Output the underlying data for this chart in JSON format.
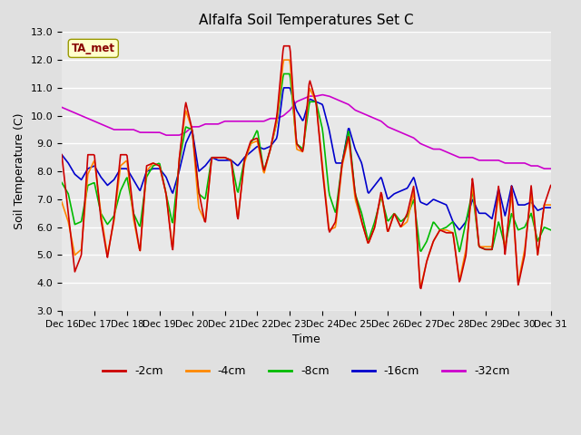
{
  "title": "Alfalfa Soil Temperatures Set C",
  "xlabel": "Time",
  "ylabel": "Soil Temperature (C)",
  "ylim": [
    3.0,
    13.0
  ],
  "yticks": [
    3.0,
    4.0,
    5.0,
    6.0,
    7.0,
    8.0,
    9.0,
    10.0,
    11.0,
    12.0,
    13.0
  ],
  "bg_color": "#e0e0e0",
  "plot_bg_color": "#e8e8e8",
  "annotation_text": "TA_met",
  "series": {
    "-2cm": {
      "color": "#cc0000",
      "lw": 1.2
    },
    "-4cm": {
      "color": "#ff8800",
      "lw": 1.2
    },
    "-8cm": {
      "color": "#00bb00",
      "lw": 1.2
    },
    "-16cm": {
      "color": "#0000cc",
      "lw": 1.2
    },
    "-32cm": {
      "color": "#cc00cc",
      "lw": 1.2
    }
  },
  "xtick_labels": [
    "Dec 16",
    "Dec 17",
    "Dec 18",
    "Dec 19",
    "Dec 20",
    "Dec 21",
    "Dec 22",
    "Dec 23",
    "Dec 24",
    "Dec 25",
    "Dec 26",
    "Dec 27",
    "Dec 28",
    "Dec 29",
    "Dec 30",
    "Dec 31"
  ],
  "legend_colors": [
    "#cc0000",
    "#ff8800",
    "#00bb00",
    "#0000cc",
    "#cc00cc"
  ],
  "legend_labels": [
    "-2cm",
    "-4cm",
    "-8cm",
    "-16cm",
    "-32cm"
  ]
}
